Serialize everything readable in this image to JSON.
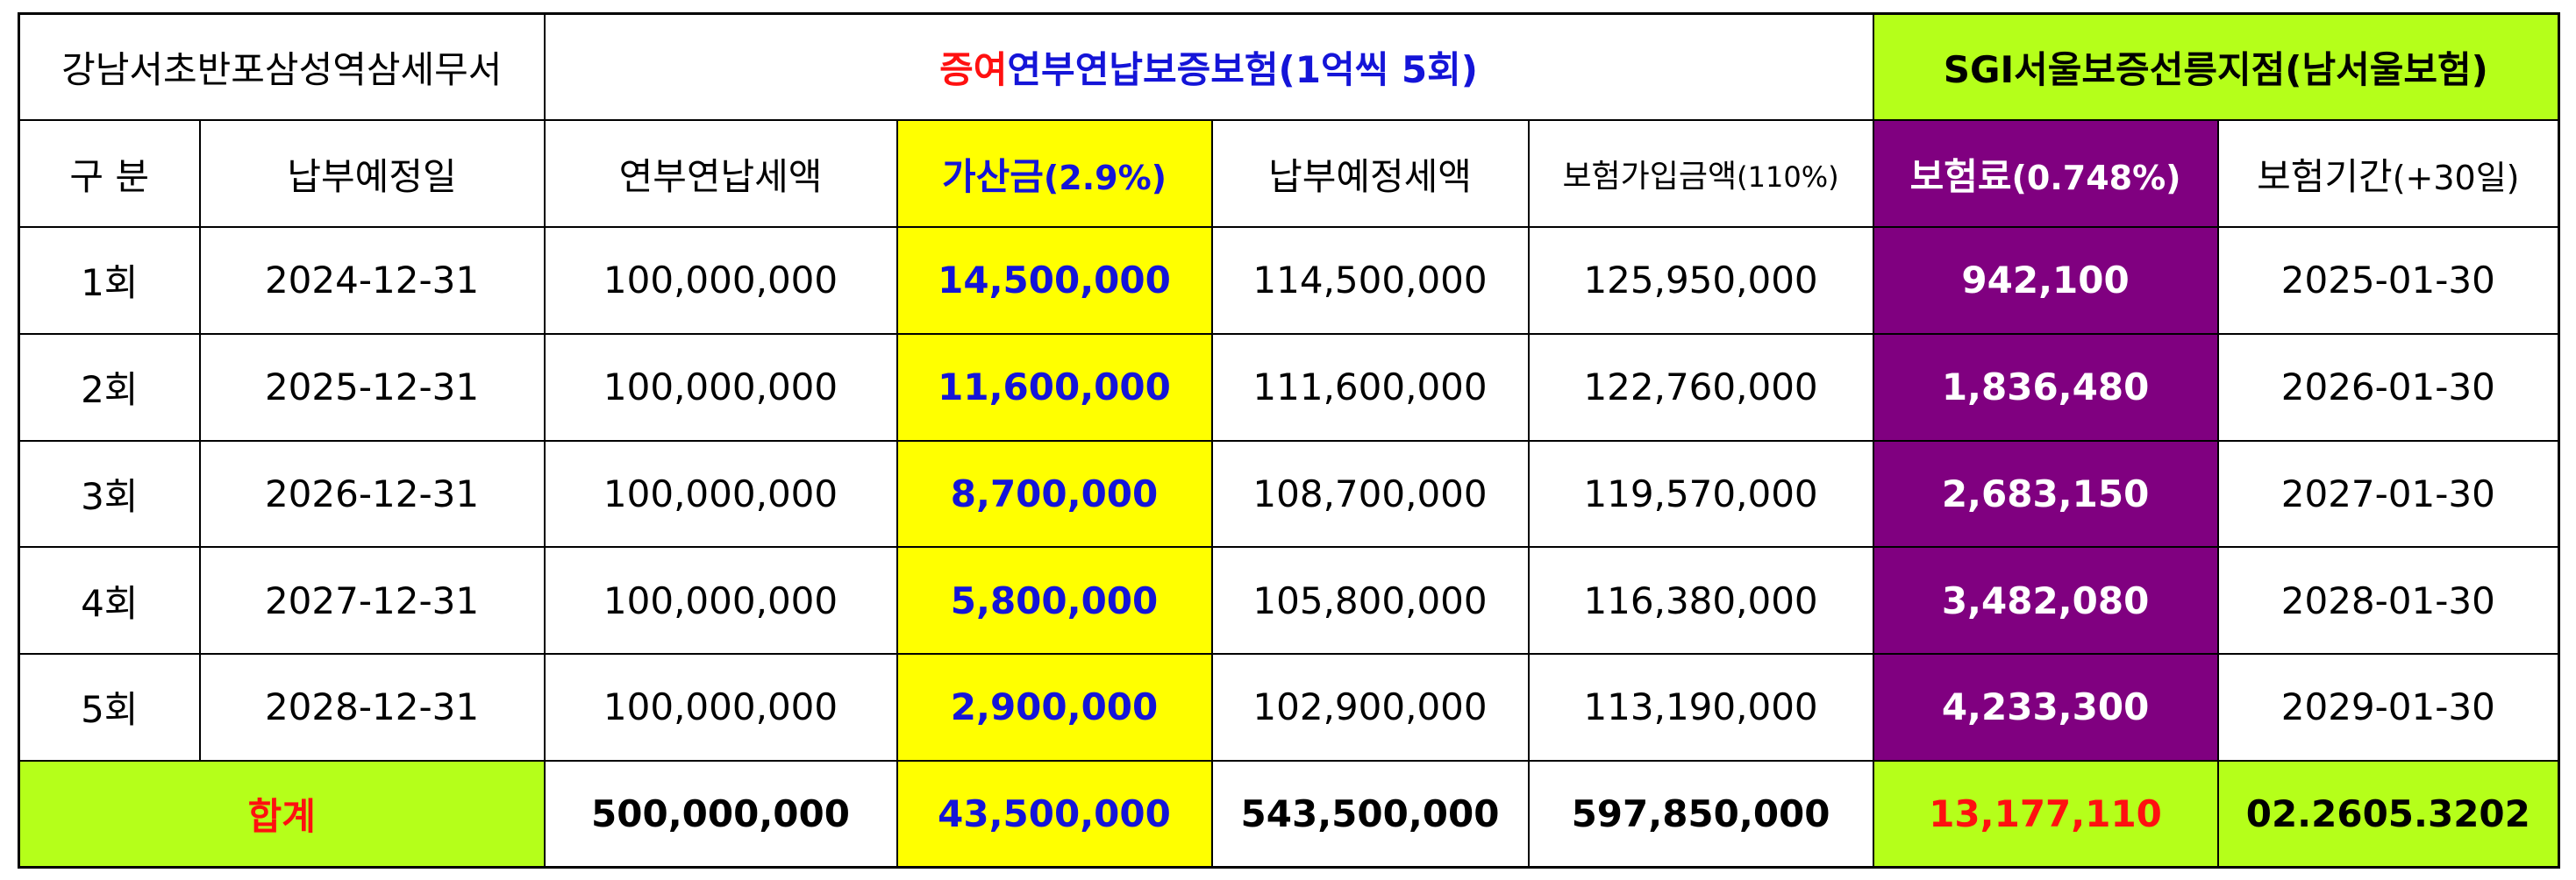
{
  "header": {
    "office": "강남서초반포삼성역삼세무서",
    "main_title_red": "증여",
    "main_title_blue": "연부연납보증보험(1억씩 5회)",
    "sgi_title": "SGI서울보증선릉지점(남서울보험)"
  },
  "columns": {
    "gubun": "구 분",
    "due_date": "납부예정일",
    "installment_tax": "연부연납세액",
    "surcharge_label": "가산금",
    "surcharge_rate": "(2.9%)",
    "scheduled_tax": "납부예정세액",
    "insured_label": "보험가입금액",
    "insured_rate": "(110%)",
    "premium_label": "보험료",
    "premium_rate": "(0.748%)",
    "period_label": "보험기간",
    "period_note": "(+30일)"
  },
  "rows": [
    {
      "round": "1회",
      "due": "2024-12-31",
      "tax": "100,000,000",
      "surcharge": "14,500,000",
      "scheduled": "114,500,000",
      "insured": "125,950,000",
      "premium": "942,100",
      "period": "2025-01-30"
    },
    {
      "round": "2회",
      "due": "2025-12-31",
      "tax": "100,000,000",
      "surcharge": "11,600,000",
      "scheduled": "111,600,000",
      "insured": "122,760,000",
      "premium": "1,836,480",
      "period": "2026-01-30"
    },
    {
      "round": "3회",
      "due": "2026-12-31",
      "tax": "100,000,000",
      "surcharge": "8,700,000",
      "scheduled": "108,700,000",
      "insured": "119,570,000",
      "premium": "2,683,150",
      "period": "2027-01-30"
    },
    {
      "round": "4회",
      "due": "2027-12-31",
      "tax": "100,000,000",
      "surcharge": "5,800,000",
      "scheduled": "105,800,000",
      "insured": "116,380,000",
      "premium": "3,482,080",
      "period": "2028-01-30"
    },
    {
      "round": "5회",
      "due": "2028-12-31",
      "tax": "100,000,000",
      "surcharge": "2,900,000",
      "scheduled": "102,900,000",
      "insured": "113,190,000",
      "premium": "4,233,300",
      "period": "2029-01-30"
    }
  ],
  "totals": {
    "label": "합계",
    "tax": "500,000,000",
    "surcharge": "43,500,000",
    "scheduled": "543,500,000",
    "insured": "597,850,000",
    "premium": "13,177,110",
    "phone": "02.2605.3202"
  },
  "colors": {
    "yellow": "#ffff00",
    "green": "#b5ff1a",
    "purple": "#800080",
    "blue": "#1414d8",
    "red": "#ff1010"
  }
}
